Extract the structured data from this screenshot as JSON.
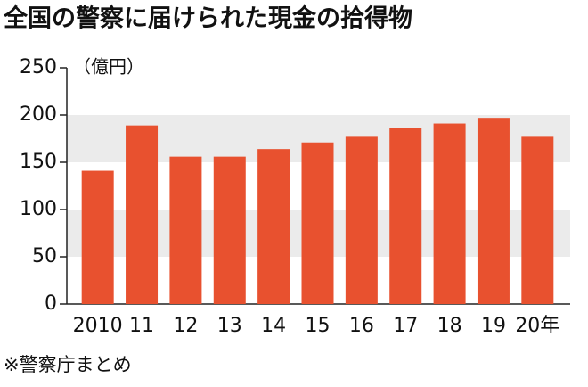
{
  "chart_data": {
    "type": "bar",
    "title": "全国の警察に届けられた現金の拾得物",
    "y_label": "（億円）",
    "source": "※警察庁まとめ",
    "categories": [
      "2010",
      "11",
      "12",
      "13",
      "14",
      "15",
      "16",
      "17",
      "18",
      "19",
      "20年"
    ],
    "values": [
      141,
      189,
      156,
      156,
      164,
      171,
      177,
      186,
      191,
      197,
      177
    ],
    "color": "#e8512f",
    "ylim": [
      0,
      250
    ],
    "yticks": [
      0,
      50,
      100,
      150,
      200,
      250
    ],
    "grid": true,
    "grid_color": "#ebebeb"
  }
}
